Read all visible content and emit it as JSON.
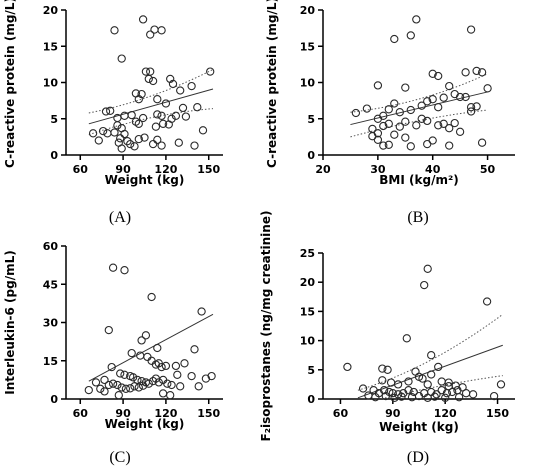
{
  "chart_data": [
    {
      "type": "scatter",
      "panel_label": "(A)",
      "xlabel": "Weight (kg)",
      "ylabel": "C-reactive protein (mg/L)",
      "xlim": [
        50,
        160
      ],
      "ylim": [
        0,
        20
      ],
      "xticks": [
        60,
        90,
        120,
        150
      ],
      "yticks": [
        0,
        5,
        10,
        15,
        20
      ],
      "fit_line": [
        [
          66,
          4.3
        ],
        [
          153,
          9.1
        ]
      ],
      "ci_upper": [
        [
          66,
          5.8
        ],
        [
          110,
          7.5
        ],
        [
          153,
          11.8
        ]
      ],
      "ci_lower": [
        [
          66,
          2.8
        ],
        [
          110,
          5.7
        ],
        [
          153,
          6.4
        ]
      ],
      "points": [
        [
          84,
          17.2
        ],
        [
          104,
          18.7
        ],
        [
          109,
          16.6
        ],
        [
          112,
          17.3
        ],
        [
          117,
          17.2
        ],
        [
          89,
          13.3
        ],
        [
          106,
          11.5
        ],
        [
          108,
          10.5
        ],
        [
          109,
          11.5
        ],
        [
          111,
          10.2
        ],
        [
          123,
          10.5
        ],
        [
          125,
          9.8
        ],
        [
          130,
          8.9
        ],
        [
          138,
          9.5
        ],
        [
          151,
          11.5
        ],
        [
          99,
          8.5
        ],
        [
          101,
          7.7
        ],
        [
          103,
          8.4
        ],
        [
          114,
          7.7
        ],
        [
          120,
          7.1
        ],
        [
          132,
          6.5
        ],
        [
          78,
          6.0
        ],
        [
          81,
          6.1
        ],
        [
          86,
          5.1
        ],
        [
          91,
          5.4
        ],
        [
          96,
          5.5
        ],
        [
          104,
          5.1
        ],
        [
          114,
          5.6
        ],
        [
          117,
          5.4
        ],
        [
          124,
          5.0
        ],
        [
          127,
          5.4
        ],
        [
          134,
          5.3
        ],
        [
          86,
          4.1
        ],
        [
          89,
          3.7
        ],
        [
          91,
          2.9
        ],
        [
          99,
          4.6
        ],
        [
          101,
          4.3
        ],
        [
          113,
          3.9
        ],
        [
          118,
          4.3
        ],
        [
          122,
          4.2
        ],
        [
          142,
          6.6
        ],
        [
          69,
          3.0
        ],
        [
          76,
          3.3
        ],
        [
          79,
          3.0
        ],
        [
          84,
          3.1
        ],
        [
          88,
          2.3
        ],
        [
          93,
          1.9
        ],
        [
          95,
          1.5
        ],
        [
          98,
          1.2
        ],
        [
          101,
          2.2
        ],
        [
          105,
          2.4
        ],
        [
          111,
          1.5
        ],
        [
          114,
          2.1
        ],
        [
          117,
          1.3
        ],
        [
          140,
          1.3
        ],
        [
          146,
          3.4
        ],
        [
          73,
          2.0
        ],
        [
          87,
          1.7
        ],
        [
          89,
          0.9
        ],
        [
          129,
          1.7
        ]
      ]
    },
    {
      "type": "scatter",
      "panel_label": "(B)",
      "xlabel": "BMI (kg/m²)",
      "ylabel": "C-reactive protein (mg/L)",
      "xlim": [
        20,
        55
      ],
      "ylim": [
        0,
        20
      ],
      "xticks": [
        20,
        30,
        40,
        50
      ],
      "yticks": [
        0,
        5,
        10,
        15,
        20
      ],
      "fit_line": [
        [
          25,
          4.2
        ],
        [
          50,
          8.7
        ]
      ],
      "ci_upper": [
        [
          25,
          5.9
        ],
        [
          38,
          7.0
        ],
        [
          50,
          11.2
        ]
      ],
      "ci_lower": [
        [
          25,
          2.5
        ],
        [
          38,
          5.2
        ],
        [
          50,
          6.2
        ]
      ],
      "points": [
        [
          33,
          16.0
        ],
        [
          36,
          16.5
        ],
        [
          37,
          18.7
        ],
        [
          47,
          17.3
        ],
        [
          30,
          9.6
        ],
        [
          35,
          9.3
        ],
        [
          40,
          11.2
        ],
        [
          41,
          10.9
        ],
        [
          43,
          9.5
        ],
        [
          46,
          11.4
        ],
        [
          48,
          11.6
        ],
        [
          49,
          11.4
        ],
        [
          26,
          5.8
        ],
        [
          28,
          6.4
        ],
        [
          30,
          5.0
        ],
        [
          31,
          5.4
        ],
        [
          32,
          6.3
        ],
        [
          33,
          7.1
        ],
        [
          34,
          5.9
        ],
        [
          36,
          6.2
        ],
        [
          38,
          6.8
        ],
        [
          39,
          7.4
        ],
        [
          40,
          7.7
        ],
        [
          41,
          6.6
        ],
        [
          42,
          7.9
        ],
        [
          44,
          8.4
        ],
        [
          45,
          8.0
        ],
        [
          46,
          8.0
        ],
        [
          47,
          6.6
        ],
        [
          48,
          6.7
        ],
        [
          50,
          9.2
        ],
        [
          29,
          3.6
        ],
        [
          30,
          3.0
        ],
        [
          31,
          4.0
        ],
        [
          32,
          4.3
        ],
        [
          34,
          3.9
        ],
        [
          35,
          4.6
        ],
        [
          37,
          4.1
        ],
        [
          38,
          5.0
        ],
        [
          39,
          4.7
        ],
        [
          41,
          4.1
        ],
        [
          42,
          4.3
        ],
        [
          43,
          3.7
        ],
        [
          44,
          4.4
        ],
        [
          47,
          6.0
        ],
        [
          29,
          2.6
        ],
        [
          30,
          2.1
        ],
        [
          32,
          1.4
        ],
        [
          33,
          2.8
        ],
        [
          35,
          2.4
        ],
        [
          36,
          1.2
        ],
        [
          39,
          1.5
        ],
        [
          40,
          2.0
        ],
        [
          43,
          1.3
        ],
        [
          45,
          3.2
        ],
        [
          49,
          1.7
        ],
        [
          31,
          1.3
        ]
      ]
    },
    {
      "type": "scatter",
      "panel_label": "(C)",
      "xlabel": "Weight (kg)",
      "ylabel": "Interleukin-6 (pg/mL)",
      "xlim": [
        50,
        160
      ],
      "ylim": [
        0,
        60
      ],
      "xticks": [
        60,
        90,
        120,
        150
      ],
      "yticks": [
        0,
        15,
        30,
        45,
        60
      ],
      "fit_line": [
        [
          66,
          7.0
        ],
        [
          153,
          33.2
        ]
      ],
      "ci_upper": [],
      "ci_lower": [],
      "points": [
        [
          83,
          51.5
        ],
        [
          91,
          50.5
        ],
        [
          110,
          40.0
        ],
        [
          80,
          27.0
        ],
        [
          103,
          23.0
        ],
        [
          106,
          25.0
        ],
        [
          114,
          20.0
        ],
        [
          140,
          19.5
        ],
        [
          145,
          34.3
        ],
        [
          152,
          9.0
        ],
        [
          96,
          18.0
        ],
        [
          102,
          17.0
        ],
        [
          107,
          16.5
        ],
        [
          110,
          15.0
        ],
        [
          113,
          13.5
        ],
        [
          115,
          14.0
        ],
        [
          117,
          12.5
        ],
        [
          120,
          13.0
        ],
        [
          127,
          13.0
        ],
        [
          133,
          14.0
        ],
        [
          82,
          12.5
        ],
        [
          88,
          10.0
        ],
        [
          91,
          9.5
        ],
        [
          95,
          9.0
        ],
        [
          97,
          8.5
        ],
        [
          100,
          7.5
        ],
        [
          103,
          7.0
        ],
        [
          106,
          6.5
        ],
        [
          108,
          6.0
        ],
        [
          111,
          7.0
        ],
        [
          113,
          8.0
        ],
        [
          115,
          6.5
        ],
        [
          118,
          7.5
        ],
        [
          121,
          6.0
        ],
        [
          124,
          5.5
        ],
        [
          77,
          7.5
        ],
        [
          80,
          5.5
        ],
        [
          83,
          6.0
        ],
        [
          86,
          5.5
        ],
        [
          89,
          4.5
        ],
        [
          92,
          4.0
        ],
        [
          95,
          4.2
        ],
        [
          98,
          5.0
        ],
        [
          101,
          4.5
        ],
        [
          104,
          5.2
        ],
        [
          66,
          3.5
        ],
        [
          71,
          6.5
        ],
        [
          74,
          4.0
        ],
        [
          77,
          3.0
        ],
        [
          87,
          1.5
        ],
        [
          118,
          2.2
        ],
        [
          123,
          1.5
        ],
        [
          130,
          5.0
        ],
        [
          128,
          9.5
        ],
        [
          138,
          9.0
        ],
        [
          143,
          5.0
        ],
        [
          148,
          8.0
        ]
      ]
    },
    {
      "type": "scatter",
      "panel_label": "(D)",
      "xlabel": "Weight (kg)",
      "ylabel": "F₂isoprostanes (ng/mg creatinine)",
      "xlim": [
        50,
        160
      ],
      "ylim": [
        0,
        25
      ],
      "xticks": [
        60,
        90,
        120,
        150
      ],
      "yticks": [
        0,
        5,
        10,
        15,
        20,
        25
      ],
      "fit_line": [
        [
          70,
          0.2
        ],
        [
          153,
          9.2
        ]
      ],
      "ci_upper": [
        [
          70,
          1.5
        ],
        [
          110,
          5.0
        ],
        [
          153,
          14.5
        ]
      ],
      "ci_lower": [
        [
          70,
          -1.0
        ],
        [
          110,
          2.2
        ],
        [
          153,
          4.0
        ]
      ],
      "points": [
        [
          108,
          19.5
        ],
        [
          110,
          22.3
        ],
        [
          144,
          16.7
        ],
        [
          98,
          10.4
        ],
        [
          112,
          7.5
        ],
        [
          116,
          5.5
        ],
        [
          64,
          5.5
        ],
        [
          84,
          5.2
        ],
        [
          87,
          5.0
        ],
        [
          103,
          4.7
        ],
        [
          105,
          3.8
        ],
        [
          107,
          3.5
        ],
        [
          99,
          3.0
        ],
        [
          93,
          2.5
        ],
        [
          118,
          3.0
        ],
        [
          122,
          2.2
        ],
        [
          126,
          2.3
        ],
        [
          152,
          2.5
        ],
        [
          73,
          1.8
        ],
        [
          79,
          1.5
        ],
        [
          82,
          1.0
        ],
        [
          85,
          1.5
        ],
        [
          88,
          1.2
        ],
        [
          90,
          1.0
        ],
        [
          93,
          0.8
        ],
        [
          96,
          1.0
        ],
        [
          99,
          1.5
        ],
        [
          102,
          1.2
        ],
        [
          105,
          0.5
        ],
        [
          108,
          1.0
        ],
        [
          112,
          1.2
        ],
        [
          115,
          0.8
        ],
        [
          118,
          1.5
        ],
        [
          121,
          1.0
        ],
        [
          124,
          1.2
        ],
        [
          127,
          1.5
        ],
        [
          130,
          2.0
        ],
        [
          84,
          3.2
        ],
        [
          89,
          2.8
        ],
        [
          112,
          4.2
        ],
        [
          76,
          0.6
        ],
        [
          80,
          0.3
        ],
        [
          86,
          0.5
        ],
        [
          91,
          0.2
        ],
        [
          95,
          0.4
        ],
        [
          101,
          0.3
        ],
        [
          110,
          0.2
        ],
        [
          114,
          0.4
        ],
        [
          120,
          0.2
        ],
        [
          128,
          0.3
        ],
        [
          132,
          1.0
        ],
        [
          148,
          0.5
        ],
        [
          136,
          0.8
        ],
        [
          110,
          2.5
        ],
        [
          122,
          2.8
        ]
      ]
    }
  ]
}
